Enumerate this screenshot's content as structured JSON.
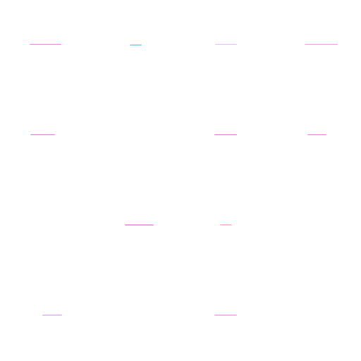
{
  "background_color": "#ffffff",
  "streaks": [
    {
      "top_color": "#f3a8f0",
      "bottom_color": "#a9d8f5"
    },
    {
      "top_color": "#d7b8ff",
      "bottom_color": "#9fe3f0"
    },
    {
      "top_color": "#ecd2ff",
      "bottom_color": "#f0d8ff"
    },
    {
      "top_color": "#f0b8f6",
      "bottom_color": "#e8c8ff"
    },
    {
      "top_color": "#f2a6e6",
      "bottom_color": "#a8d3f7"
    },
    {
      "top_color": "#f6a6dc",
      "bottom_color": "#c6b8ff"
    },
    {
      "top_color": "#f5a9e8",
      "bottom_color": "#d4b8ff"
    },
    {
      "top_color": "#f0a8ea",
      "bottom_color": "#c8b4ff"
    },
    {
      "top_color": "#f6c0de",
      "bottom_color": "#b8f0c8"
    },
    {
      "top_color": "#e6c4ff",
      "bottom_color": "#ecc8ff"
    },
    {
      "top_color": "#f2b8f0",
      "bottom_color": "#e0c6ff"
    }
  ]
}
